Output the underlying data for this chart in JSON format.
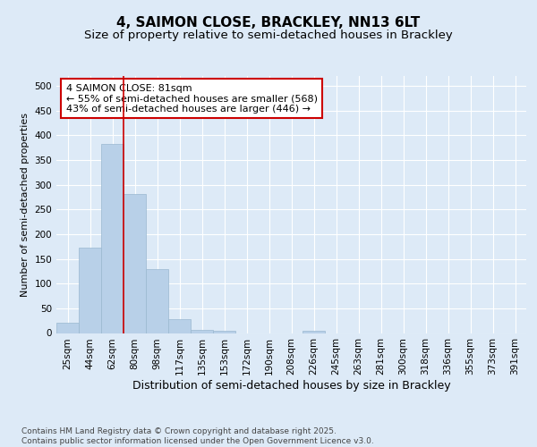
{
  "title": "4, SAIMON CLOSE, BRACKLEY, NN13 6LT",
  "subtitle": "Size of property relative to semi-detached houses in Brackley",
  "xlabel": "Distribution of semi-detached houses by size in Brackley",
  "ylabel": "Number of semi-detached properties",
  "categories": [
    "25sqm",
    "44sqm",
    "62sqm",
    "80sqm",
    "98sqm",
    "117sqm",
    "135sqm",
    "153sqm",
    "172sqm",
    "190sqm",
    "208sqm",
    "226sqm",
    "245sqm",
    "263sqm",
    "281sqm",
    "300sqm",
    "318sqm",
    "336sqm",
    "355sqm",
    "373sqm",
    "391sqm"
  ],
  "values": [
    20,
    172,
    383,
    282,
    130,
    28,
    7,
    5,
    0,
    0,
    0,
    5,
    0,
    0,
    0,
    0,
    0,
    0,
    0,
    0,
    0
  ],
  "bar_color": "#b8d0e8",
  "bar_edgecolor": "#9ab8d0",
  "vline_color": "#cc0000",
  "annotation_text": "4 SAIMON CLOSE: 81sqm\n← 55% of semi-detached houses are smaller (568)\n43% of semi-detached houses are larger (446) →",
  "annotation_box_edgecolor": "#cc0000",
  "annotation_box_facecolor": "#ffffff",
  "ylim": [
    0,
    520
  ],
  "yticks": [
    0,
    50,
    100,
    150,
    200,
    250,
    300,
    350,
    400,
    450,
    500
  ],
  "background_color": "#ddeaf7",
  "plot_background_color": "#ddeaf7",
  "grid_color": "#ffffff",
  "footer": "Contains HM Land Registry data © Crown copyright and database right 2025.\nContains public sector information licensed under the Open Government Licence v3.0.",
  "title_fontsize": 11,
  "subtitle_fontsize": 9.5,
  "xlabel_fontsize": 9,
  "ylabel_fontsize": 8,
  "tick_fontsize": 7.5,
  "footer_fontsize": 6.5,
  "annotation_fontsize": 8
}
